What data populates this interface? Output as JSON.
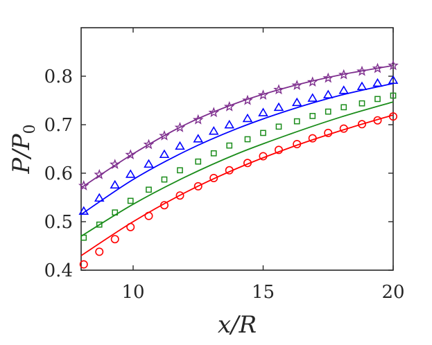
{
  "chart_data": {
    "type": "scatter",
    "title": "",
    "xlabel": "x/R",
    "ylabel": "P/P",
    "ylabel_subscript": "0",
    "xlim": [
      8,
      20
    ],
    "ylim": [
      0.4,
      0.9
    ],
    "xticks": [
      10,
      15,
      20
    ],
    "yticks": [
      0.4,
      0.5,
      0.6,
      0.7,
      0.8
    ],
    "xtick_labels": [
      "10",
      "15",
      "20"
    ],
    "ytick_labels": [
      "0.4",
      "0.5",
      "0.6",
      "0.7",
      "0.8"
    ],
    "grid": false,
    "series": [
      {
        "color": "#7e2f8e",
        "marker": "star",
        "points": {
          "x": [
            8.1,
            8.7,
            9.3,
            9.9,
            10.6,
            11.2,
            11.8,
            12.5,
            13.1,
            13.7,
            14.4,
            15.0,
            15.6,
            16.3,
            16.9,
            17.5,
            18.1,
            18.8,
            19.4,
            20.0
          ],
          "y": [
            0.574,
            0.597,
            0.618,
            0.638,
            0.659,
            0.677,
            0.694,
            0.71,
            0.725,
            0.737,
            0.75,
            0.761,
            0.772,
            0.781,
            0.788,
            0.796,
            0.803,
            0.81,
            0.816,
            0.822
          ]
        },
        "curve": {
          "x": [
            8,
            10,
            12,
            14,
            16,
            18,
            20
          ],
          "y": [
            0.57,
            0.64,
            0.7,
            0.745,
            0.778,
            0.803,
            0.822
          ]
        }
      },
      {
        "color": "#0000ff",
        "marker": "triangle",
        "points": {
          "x": [
            8.1,
            8.7,
            9.3,
            9.9,
            10.6,
            11.2,
            11.8,
            12.5,
            13.1,
            13.7,
            14.4,
            15.0,
            15.6,
            16.3,
            16.9,
            17.5,
            18.1,
            18.8,
            19.4,
            20.0
          ],
          "y": [
            0.521,
            0.548,
            0.575,
            0.597,
            0.618,
            0.638,
            0.655,
            0.67,
            0.686,
            0.699,
            0.712,
            0.724,
            0.735,
            0.745,
            0.754,
            0.761,
            0.77,
            0.778,
            0.785,
            0.791
          ]
        },
        "curve": {
          "x": [
            8,
            10,
            12,
            14,
            16,
            18,
            20
          ],
          "y": [
            0.515,
            0.587,
            0.645,
            0.692,
            0.73,
            0.761,
            0.785
          ]
        }
      },
      {
        "color": "#1a8c1a",
        "marker": "square",
        "points": {
          "x": [
            8.1,
            8.7,
            9.3,
            9.9,
            10.6,
            11.2,
            11.8,
            12.5,
            13.1,
            13.7,
            14.4,
            15.0,
            15.6,
            16.3,
            16.9,
            17.5,
            18.1,
            18.8,
            19.4,
            20.0
          ],
          "y": [
            0.467,
            0.494,
            0.519,
            0.543,
            0.566,
            0.587,
            0.606,
            0.624,
            0.641,
            0.657,
            0.67,
            0.683,
            0.696,
            0.707,
            0.718,
            0.727,
            0.736,
            0.744,
            0.753,
            0.76
          ]
        },
        "curve": {
          "x": [
            8,
            10,
            12,
            14,
            16,
            18,
            20
          ],
          "y": [
            0.47,
            0.536,
            0.592,
            0.64,
            0.68,
            0.716,
            0.747
          ]
        }
      },
      {
        "color": "#ff0000",
        "marker": "circle",
        "points": {
          "x": [
            8.1,
            8.7,
            9.3,
            9.9,
            10.6,
            11.2,
            11.8,
            12.5,
            13.1,
            13.7,
            14.4,
            15.0,
            15.6,
            16.3,
            16.9,
            17.5,
            18.1,
            18.8,
            19.4,
            20.0
          ],
          "y": [
            0.412,
            0.438,
            0.464,
            0.489,
            0.512,
            0.534,
            0.554,
            0.573,
            0.59,
            0.606,
            0.621,
            0.635,
            0.648,
            0.66,
            0.672,
            0.683,
            0.692,
            0.701,
            0.709,
            0.717
          ]
        },
        "curve": {
          "x": [
            8,
            10,
            12,
            14,
            16,
            18,
            20
          ],
          "y": [
            0.43,
            0.5,
            0.56,
            0.61,
            0.652,
            0.688,
            0.72
          ]
        }
      }
    ]
  }
}
